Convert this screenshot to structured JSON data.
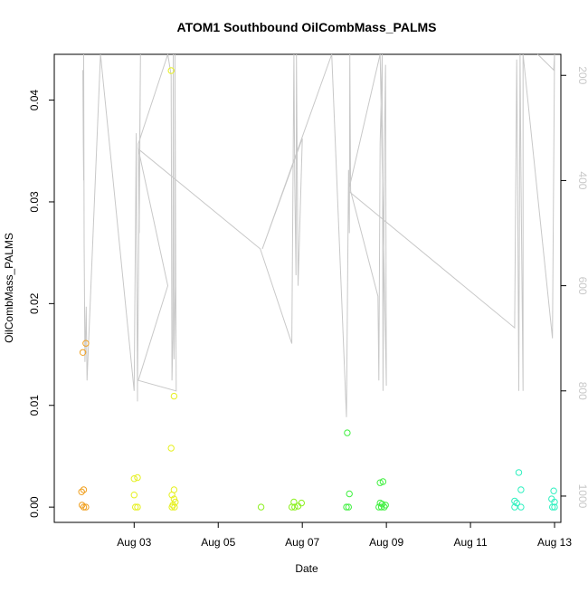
{
  "chart_data": {
    "type": "scatter",
    "title": "ATOM1 Southbound OilCombMass_PALMS",
    "xlabel": "Date",
    "ylabel": "OilCombMass_PALMS",
    "x_unit": "days since Aug 01",
    "xlim": [
      1.1,
      13.15
    ],
    "ylim": [
      -0.0015,
      0.0445
    ],
    "y_ticks": [
      0.0,
      0.01,
      0.02,
      0.03,
      0.04
    ],
    "y_tick_labels": [
      "0.00",
      "0.01",
      "0.02",
      "0.03",
      "0.04"
    ],
    "x_ticks": [
      3,
      5,
      7,
      9,
      11,
      13
    ],
    "x_tick_labels": [
      "Aug 03",
      "Aug 05",
      "Aug 07",
      "Aug 09",
      "Aug 11",
      "Aug 13"
    ],
    "y2_ylim": [
      160,
      1050
    ],
    "y2_ticks": [
      200,
      400,
      600,
      800,
      1000
    ],
    "y2_tick_labels": [
      "200",
      "400",
      "600",
      "800",
      "1000"
    ],
    "y2_color": "#c8c8c8",
    "grid": false,
    "series": [
      {
        "color": "#f0a020",
        "points": [
          [
            1.75,
            0.0015
          ],
          [
            1.8,
            0.0017
          ],
          [
            1.76,
            0.0002
          ],
          [
            1.8,
            0.0
          ],
          [
            1.85,
            0.0
          ],
          [
            1.78,
            0.0152
          ],
          [
            1.85,
            0.0161
          ]
        ]
      },
      {
        "color": "#e6f020",
        "points": [
          [
            3.0,
            0.0028
          ],
          [
            3.08,
            0.0029
          ],
          [
            3.0,
            0.0012
          ],
          [
            3.03,
            0.0
          ],
          [
            3.08,
            0.0
          ],
          [
            3.88,
            0.0429
          ],
          [
            3.88,
            0.0058
          ],
          [
            3.95,
            0.0109
          ],
          [
            3.9,
            0.0012
          ],
          [
            3.95,
            0.0017
          ],
          [
            3.95,
            0.0008
          ],
          [
            3.98,
            0.0005
          ],
          [
            3.92,
            0.0002
          ],
          [
            3.96,
            0.0
          ],
          [
            3.9,
            0.0
          ]
        ]
      },
      {
        "color": "#8cf020",
        "points": [
          [
            6.02,
            0.0
          ],
          [
            6.8,
            0.0005
          ],
          [
            6.75,
            0.0
          ],
          [
            6.82,
            0.0
          ],
          [
            6.9,
            0.0001
          ],
          [
            6.98,
            0.0004
          ]
        ]
      },
      {
        "color": "#40f040",
        "points": [
          [
            8.07,
            0.0073
          ],
          [
            8.12,
            0.0013
          ],
          [
            8.05,
            0.0
          ],
          [
            8.1,
            0.0
          ],
          [
            8.85,
            0.0024
          ],
          [
            8.92,
            0.0025
          ],
          [
            8.85,
            0.0004
          ],
          [
            8.9,
            0.0003
          ],
          [
            8.98,
            0.0002
          ],
          [
            8.82,
            0.0
          ],
          [
            8.88,
            0.0
          ],
          [
            8.95,
            0.0
          ]
        ]
      },
      {
        "color": "#30f0c0",
        "points": [
          [
            12.05,
            0.0006
          ],
          [
            12.1,
            0.0004
          ],
          [
            12.15,
            0.0034
          ],
          [
            12.2,
            0.0017
          ],
          [
            12.05,
            0.0
          ],
          [
            12.2,
            0.0
          ],
          [
            12.93,
            0.0008
          ],
          [
            12.98,
            0.0016
          ],
          [
            13.0,
            0.0005
          ],
          [
            12.95,
            0.0
          ],
          [
            13.0,
            0.0
          ]
        ]
      }
    ],
    "line2": [
      [
        1.78,
        190
      ],
      [
        1.79,
        330
      ],
      [
        1.8,
        400
      ],
      [
        1.8,
        160
      ],
      [
        1.81,
        520
      ],
      [
        1.83,
        745
      ],
      [
        1.86,
        640
      ],
      [
        1.88,
        780
      ],
      [
        2.2,
        160
      ],
      [
        3.0,
        800
      ],
      [
        3.05,
        310
      ],
      [
        3.08,
        820
      ],
      [
        3.08,
        790
      ],
      [
        3.15,
        160
      ],
      [
        3.12,
        500
      ],
      [
        3.1,
        330
      ],
      [
        3.8,
        160
      ],
      [
        3.88,
        200
      ],
      [
        3.9,
        780
      ],
      [
        3.92,
        700
      ],
      [
        3.93,
        160
      ],
      [
        3.95,
        740
      ],
      [
        3.98,
        600
      ],
      [
        3.97,
        160
      ],
      [
        4.0,
        800
      ],
      [
        3.1,
        780
      ],
      [
        3.8,
        600
      ],
      [
        3.1,
        340
      ],
      [
        6.0,
        530
      ],
      [
        6.75,
        710
      ],
      [
        6.8,
        160
      ],
      [
        6.82,
        400
      ],
      [
        6.85,
        580
      ],
      [
        6.86,
        160
      ],
      [
        6.9,
        600
      ],
      [
        7.0,
        320
      ],
      [
        6.05,
        530
      ],
      [
        7.7,
        160
      ],
      [
        8.05,
        850
      ],
      [
        8.1,
        380
      ],
      [
        8.12,
        500
      ],
      [
        8.13,
        160
      ],
      [
        8.15,
        420
      ],
      [
        8.8,
        620
      ],
      [
        8.82,
        780
      ],
      [
        8.85,
        330
      ],
      [
        8.9,
        160
      ],
      [
        8.92,
        800
      ],
      [
        8.95,
        350
      ],
      [
        8.98,
        180
      ],
      [
        9.0,
        790
      ],
      [
        8.85,
        160
      ],
      [
        8.1,
        420
      ],
      [
        12.05,
        680
      ],
      [
        12.1,
        170
      ],
      [
        12.12,
        360
      ],
      [
        12.15,
        800
      ],
      [
        12.18,
        160
      ],
      [
        12.2,
        390
      ],
      [
        12.25,
        800
      ],
      [
        12.25,
        160
      ],
      [
        12.95,
        700
      ],
      [
        13.0,
        160
      ],
      [
        12.98,
        190
      ],
      [
        12.6,
        160
      ]
    ]
  }
}
